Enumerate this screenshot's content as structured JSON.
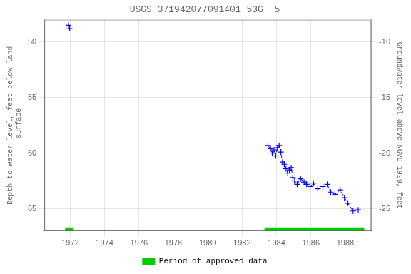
{
  "chart_data": {
    "type": "line",
    "title": "USGS 371942077091401 53G  5",
    "ylabel": "Depth to water level, feet below land\n surface",
    "y2label": "Groundwater level above NGVD 1929, feet",
    "xlim": [
      1970.5,
      1989.5
    ],
    "ylim": [
      67,
      48
    ],
    "y2lim": [
      -27,
      -8
    ],
    "xticks": [
      1972,
      1974,
      1976,
      1978,
      1980,
      1982,
      1984,
      1986,
      1988
    ],
    "yticks": [
      50,
      55,
      60,
      65
    ],
    "y2ticks": [
      -10,
      -15,
      -20,
      -25
    ],
    "grid": true,
    "legend": "bottom",
    "series": [
      {
        "x": [
          1971.9,
          1971.97
        ],
        "values": [
          48.5,
          48.8
        ],
        "color": "#0000ff",
        "marker": "plus",
        "line_style": "none"
      },
      {
        "x": [
          1983.5,
          1983.65,
          1983.75,
          1983.85,
          1983.95,
          1984.05,
          1984.15,
          1984.25,
          1984.35,
          1984.45,
          1984.55,
          1984.65,
          1984.75,
          1984.85,
          1984.95,
          1985.05,
          1985.2,
          1985.4,
          1985.6,
          1985.75,
          1985.95,
          1986.15,
          1986.4,
          1986.7,
          1986.95,
          1987.15,
          1987.4,
          1987.7,
          1987.95,
          1988.15,
          1988.45,
          1988.75
        ],
        "values": [
          59.3,
          59.6,
          60.0,
          59.7,
          60.25,
          59.5,
          59.3,
          59.9,
          60.8,
          61.0,
          61.4,
          61.8,
          61.5,
          61.3,
          62.2,
          62.5,
          62.8,
          62.3,
          62.6,
          62.8,
          63.0,
          62.7,
          63.2,
          63.0,
          62.8,
          63.5,
          63.7,
          63.3,
          64.0,
          64.5,
          65.2,
          65.1
        ],
        "color": "#0000ff",
        "marker": "plus",
        "line_style": "dashed"
      },
      {
        "name": "Period of approved data",
        "type": "bar",
        "color": "#00cc00",
        "segments": [
          {
            "xstart": 1971.7,
            "xend": 1972.15
          },
          {
            "xstart": 1983.3,
            "xend": 1989.1
          }
        ]
      }
    ]
  }
}
